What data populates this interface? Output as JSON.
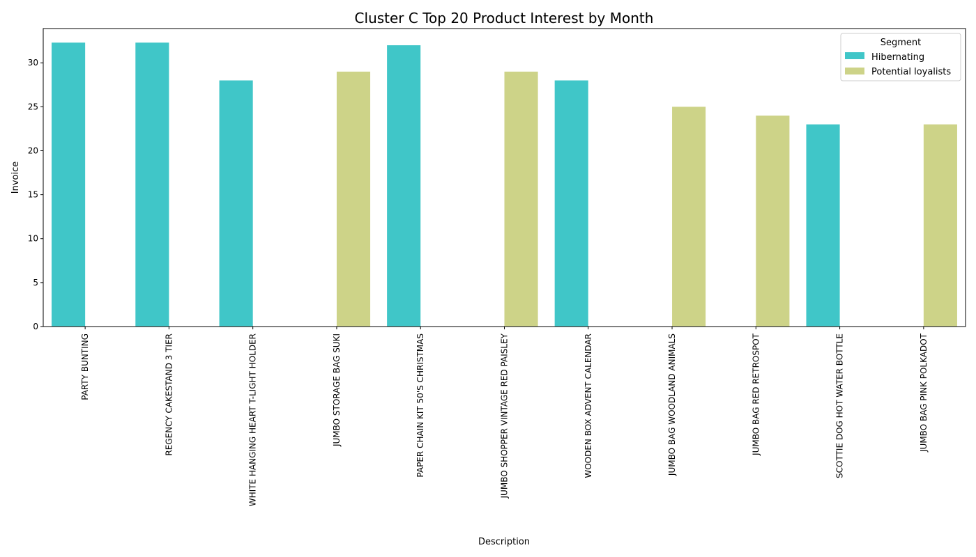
{
  "chart_data": {
    "type": "bar",
    "title": "Cluster C Top 20 Product Interest by Month",
    "xlabel": "Description",
    "ylabel": "Invoice",
    "ylim": [
      0,
      33.9
    ],
    "yticks": [
      0,
      5,
      10,
      15,
      20,
      25,
      30
    ],
    "grid": false,
    "legend": {
      "title": "Segment",
      "placement": "top-right"
    },
    "categories": [
      "PARTY BUNTING",
      "REGENCY CAKESTAND 3 TIER",
      "WHITE HANGING HEART T-LIGHT HOLDER",
      "JUMBO STORAGE BAG SUKI",
      "PAPER CHAIN KIT 50'S CHRISTMAS",
      "JUMBO SHOPPER VINTAGE RED PAISLEY",
      "WOODEN BOX ADVENT CALENDAR",
      "JUMBO BAG WOODLAND ANIMALS",
      "JUMBO BAG RED RETROSPOT",
      "SCOTTIE DOG HOT WATER BOTTLE",
      "JUMBO BAG PINK POLKADOT"
    ],
    "series": [
      {
        "name": "Hibernating",
        "color": "#40c6c8",
        "values": [
          32.3,
          32.3,
          28,
          null,
          32,
          null,
          28,
          null,
          null,
          23,
          null
        ]
      },
      {
        "name": "Potential loyalists",
        "color": "#cdd388",
        "values": [
          null,
          null,
          null,
          29,
          null,
          29,
          null,
          25,
          24,
          null,
          23
        ]
      }
    ]
  }
}
